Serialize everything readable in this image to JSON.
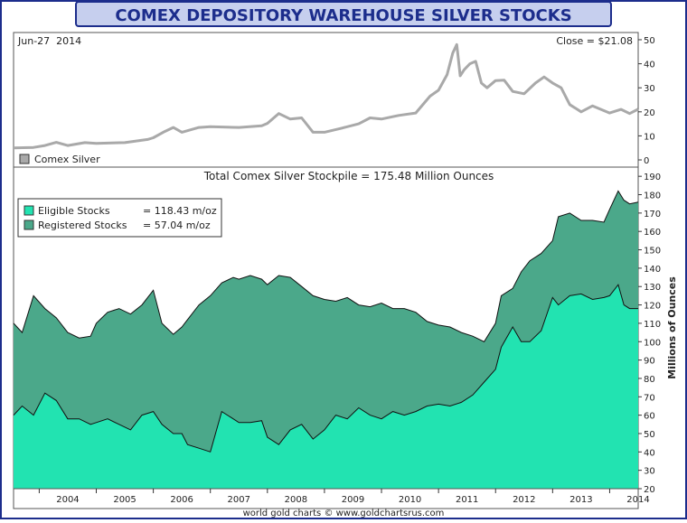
{
  "title": "COMEX DEPOSITORY WAREHOUSE SILVER STOCKS",
  "footer": "world gold charts © www.goldchartsrus.com",
  "colors": {
    "border": "#1c2d8c",
    "title_bg": "#c6cfee",
    "silver_line": "#a9a9a9",
    "eligible": "#22e3b1",
    "registered": "#4ba88a",
    "outline": "#111111"
  },
  "chart_data": [
    {
      "type": "line",
      "name": "top-panel",
      "date_label": "Jun-27  2014",
      "close_label": "Close = $21.08",
      "legend": [
        "Comex Silver"
      ],
      "ylim": [
        -3,
        53
      ],
      "y_ticks": [
        0,
        10,
        20,
        30,
        40,
        50
      ],
      "xlim": [
        2003.55,
        2014.5
      ],
      "series": [
        {
          "name": "Comex Silver",
          "x": [
            2003.55,
            2003.9,
            2004.1,
            2004.3,
            2004.5,
            2004.8,
            2005.0,
            2005.5,
            2005.9,
            2006.0,
            2006.2,
            2006.35,
            2006.5,
            2006.8,
            2007.0,
            2007.5,
            2007.9,
            2008.0,
            2008.2,
            2008.4,
            2008.6,
            2008.8,
            2009.0,
            2009.3,
            2009.6,
            2009.8,
            2010.0,
            2010.3,
            2010.6,
            2010.85,
            2011.0,
            2011.15,
            2011.25,
            2011.32,
            2011.38,
            2011.45,
            2011.55,
            2011.65,
            2011.75,
            2011.85,
            2012.0,
            2012.15,
            2012.3,
            2012.5,
            2012.7,
            2012.85,
            2013.0,
            2013.15,
            2013.3,
            2013.5,
            2013.7,
            2013.9,
            2014.0,
            2014.2,
            2014.35,
            2014.5
          ],
          "y": [
            5,
            5.2,
            6,
            7.3,
            6.0,
            7.2,
            6.9,
            7.2,
            8.5,
            9.2,
            11.8,
            13.5,
            11.5,
            13.5,
            13.8,
            13.5,
            14.2,
            15.2,
            19.3,
            17.0,
            17.5,
            11.5,
            11.5,
            13.2,
            15.0,
            17.5,
            17.0,
            18.5,
            19.5,
            26.5,
            29.0,
            35.5,
            44.5,
            48.0,
            35.0,
            37.5,
            40.0,
            41.0,
            32.0,
            30.0,
            33.0,
            33.2,
            28.5,
            27.5,
            32.0,
            34.5,
            32.0,
            30.0,
            23.0,
            20.0,
            22.5,
            20.5,
            19.5,
            21.0,
            19.3,
            21.1
          ]
        }
      ]
    },
    {
      "type": "area",
      "name": "bottom-panel",
      "title": "Total Comex Silver Stockpile = 175.48 Million Ounces",
      "ylabel": "Millions of Ounces",
      "ylim": [
        20,
        195
      ],
      "y_ticks": [
        20,
        30,
        40,
        50,
        60,
        70,
        80,
        90,
        100,
        110,
        120,
        130,
        140,
        150,
        160,
        170,
        180,
        190
      ],
      "x_ticks": [
        "2004",
        "2005",
        "2006",
        "2007",
        "2008",
        "2009",
        "2010",
        "2011",
        "2012",
        "2013",
        "2014"
      ],
      "xlim": [
        2003.55,
        2014.5
      ],
      "legend": [
        {
          "name": "Eligible Stocks",
          "value": "= 118.43 m/oz"
        },
        {
          "name": "Registered Stocks",
          "value": "= 57.04 m/oz"
        }
      ],
      "series": [
        {
          "name": "Total (Registered Stocks)",
          "x": [
            2003.55,
            2003.7,
            2003.9,
            2004.1,
            2004.3,
            2004.5,
            2004.7,
            2004.9,
            2005.0,
            2005.2,
            2005.4,
            2005.6,
            2005.8,
            2006.0,
            2006.15,
            2006.35,
            2006.5,
            2006.6,
            2006.8,
            2007.0,
            2007.2,
            2007.4,
            2007.5,
            2007.7,
            2007.9,
            2008.0,
            2008.2,
            2008.4,
            2008.6,
            2008.8,
            2009.0,
            2009.2,
            2009.4,
            2009.6,
            2009.8,
            2010.0,
            2010.2,
            2010.4,
            2010.6,
            2010.8,
            2011.0,
            2011.2,
            2011.4,
            2011.6,
            2011.8,
            2012.0,
            2012.1,
            2012.3,
            2012.45,
            2012.6,
            2012.8,
            2013.0,
            2013.1,
            2013.3,
            2013.5,
            2013.7,
            2013.9,
            2014.0,
            2014.15,
            2014.25,
            2014.35,
            2014.5
          ],
          "y": [
            110,
            105,
            125,
            118,
            113,
            105,
            102,
            103,
            110,
            116,
            118,
            115,
            120,
            128,
            110,
            104,
            108,
            112,
            120,
            125,
            132,
            135,
            134,
            136,
            134,
            131,
            136,
            135,
            130,
            125,
            123,
            122,
            124,
            120,
            119,
            121,
            118,
            118,
            116,
            111,
            109,
            108,
            105,
            103,
            100,
            110,
            125,
            129,
            138,
            144,
            148,
            155,
            168,
            170,
            166,
            166,
            165,
            172,
            182,
            177,
            175,
            176
          ]
        },
        {
          "name": "Eligible Stocks",
          "x": [
            2003.55,
            2003.7,
            2003.9,
            2004.1,
            2004.3,
            2004.5,
            2004.7,
            2004.9,
            2005.0,
            2005.2,
            2005.4,
            2005.6,
            2005.8,
            2006.0,
            2006.15,
            2006.35,
            2006.5,
            2006.6,
            2006.8,
            2007.0,
            2007.2,
            2007.4,
            2007.5,
            2007.7,
            2007.9,
            2008.0,
            2008.2,
            2008.4,
            2008.6,
            2008.8,
            2009.0,
            2009.2,
            2009.4,
            2009.6,
            2009.8,
            2010.0,
            2010.2,
            2010.4,
            2010.6,
            2010.8,
            2011.0,
            2011.2,
            2011.4,
            2011.6,
            2011.8,
            2012.0,
            2012.1,
            2012.3,
            2012.45,
            2012.6,
            2012.8,
            2013.0,
            2013.1,
            2013.3,
            2013.5,
            2013.7,
            2013.9,
            2014.0,
            2014.15,
            2014.25,
            2014.35,
            2014.5
          ],
          "y": [
            60,
            65,
            60,
            72,
            68,
            58,
            58,
            55,
            56,
            58,
            55,
            52,
            60,
            62,
            55,
            50,
            50,
            44,
            42,
            40,
            62,
            58,
            56,
            56,
            57,
            48,
            44,
            52,
            55,
            47,
            52,
            60,
            58,
            64,
            60,
            58,
            62,
            60,
            62,
            65,
            66,
            65,
            67,
            71,
            78,
            85,
            97,
            108,
            100,
            100,
            106,
            124,
            120,
            125,
            126,
            123,
            124,
            125,
            131,
            120,
            118,
            118
          ]
        }
      ]
    }
  ]
}
